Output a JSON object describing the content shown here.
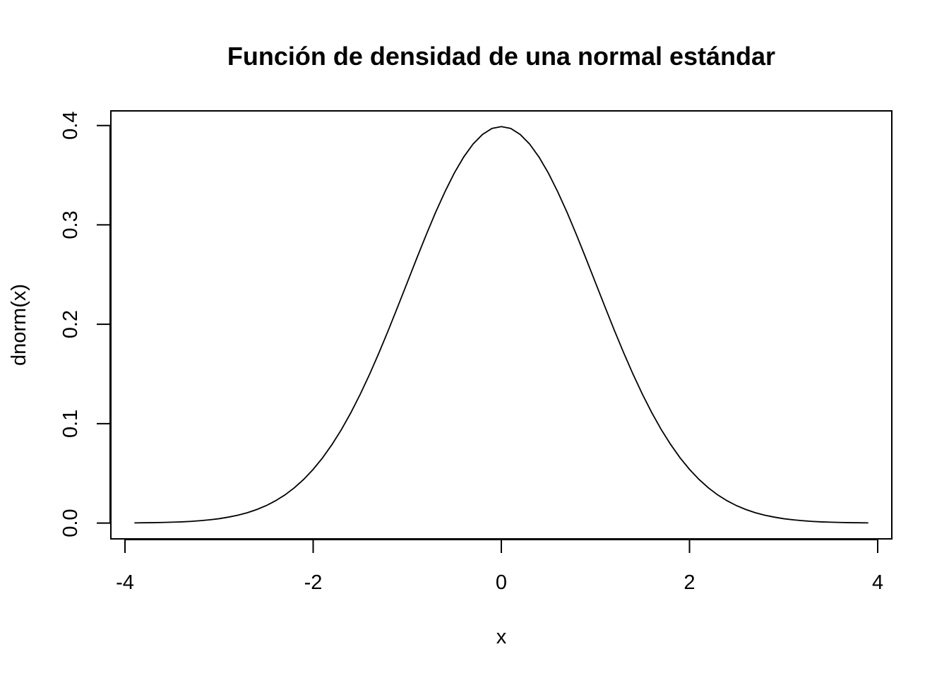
{
  "chart_data": {
    "type": "line",
    "title": "Función de densidad de una normal estándar",
    "xlabel": "x",
    "ylabel": "dnorm(x)",
    "xlim": [
      -4.15,
      4.15
    ],
    "ylim": [
      -0.0159,
      0.4147
    ],
    "x_ticks": [
      "-4",
      "-2",
      "0",
      "2",
      "4"
    ],
    "y_ticks": [
      "0.0",
      "0.1",
      "0.2",
      "0.3",
      "0.4"
    ],
    "grid": false,
    "series": [
      {
        "x": [
          -3.9,
          -3.8,
          -3.7,
          -3.6,
          -3.5,
          -3.4,
          -3.3,
          -3.2,
          -3.1,
          -3.0,
          -2.9,
          -2.8,
          -2.7,
          -2.6,
          -2.5,
          -2.4,
          -2.3,
          -2.2,
          -2.1,
          -2.0,
          -1.9,
          -1.8,
          -1.7,
          -1.6,
          -1.5,
          -1.4,
          -1.3,
          -1.2,
          -1.1,
          -1.0,
          -0.9,
          -0.8,
          -0.7,
          -0.6,
          -0.5,
          -0.4,
          -0.3,
          -0.2,
          -0.1,
          0.0,
          0.1,
          0.2,
          0.3,
          0.4,
          0.5,
          0.6,
          0.7,
          0.8,
          0.9,
          1.0,
          1.1,
          1.2,
          1.3,
          1.4,
          1.5,
          1.6,
          1.7,
          1.8,
          1.9,
          2.0,
          2.1,
          2.2,
          2.3,
          2.4,
          2.5,
          2.6,
          2.7,
          2.8,
          2.9,
          3.0,
          3.1,
          3.2,
          3.3,
          3.4,
          3.5,
          3.6,
          3.7,
          3.8,
          3.9
        ],
        "y": [
          0.0002,
          0.0003,
          0.0004,
          0.0006,
          0.0009,
          0.0012,
          0.0017,
          0.0024,
          0.0033,
          0.0044,
          0.006,
          0.0079,
          0.0104,
          0.0136,
          0.0175,
          0.0224,
          0.0283,
          0.0355,
          0.044,
          0.054,
          0.0656,
          0.079,
          0.094,
          0.1109,
          0.1295,
          0.1497,
          0.1714,
          0.1942,
          0.2179,
          0.242,
          0.2661,
          0.2897,
          0.3123,
          0.3332,
          0.3521,
          0.3683,
          0.3814,
          0.391,
          0.397,
          0.3989,
          0.397,
          0.391,
          0.3814,
          0.3683,
          0.3521,
          0.3332,
          0.3123,
          0.2897,
          0.2661,
          0.242,
          0.2179,
          0.1942,
          0.1714,
          0.1497,
          0.1295,
          0.1109,
          0.094,
          0.079,
          0.0656,
          0.054,
          0.044,
          0.0355,
          0.0283,
          0.0224,
          0.0175,
          0.0136,
          0.0104,
          0.0079,
          0.006,
          0.0044,
          0.0033,
          0.0024,
          0.0017,
          0.0012,
          0.0009,
          0.0006,
          0.0004,
          0.0003,
          0.0002
        ]
      }
    ]
  }
}
